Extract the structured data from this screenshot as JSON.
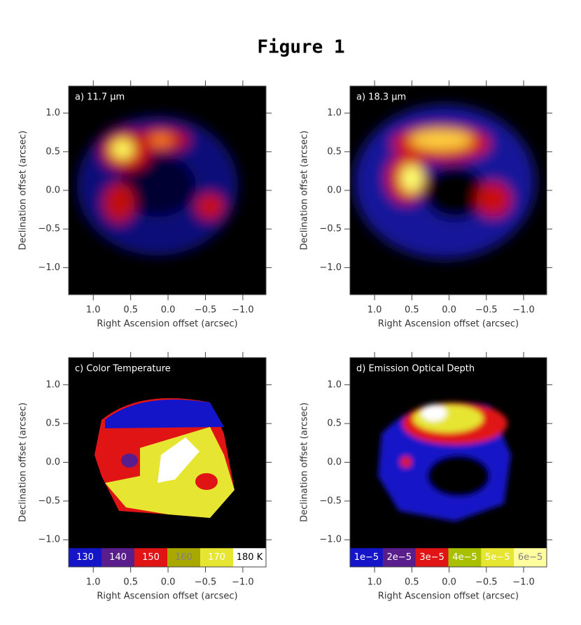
{
  "title": "Figure 1",
  "chart_data": [
    {
      "type": "image",
      "title": "a) 11.7 μm",
      "xlabel": "Right Ascension offset (arcsec)",
      "ylabel": "Declination offset (arcsec)",
      "xlim": [
        1.33,
        -1.31
      ],
      "ylim": [
        -1.35,
        1.35
      ],
      "xticks": [
        {
          "value": 1,
          "label": "1.0"
        },
        0.5,
        {
          "value": 0,
          "label": "0.0"
        },
        {
          "value": -0.5,
          "label": "−0.5"
        },
        {
          "value": -1,
          "label": "−1.0"
        }
      ],
      "yticks": [
        {
          "value": 1,
          "label": "1.0"
        },
        0.5,
        {
          "value": 0,
          "label": "0.0"
        },
        {
          "value": -0.5,
          "label": "−0.5"
        },
        {
          "value": -1,
          "label": "−1.0"
        }
      ]
    },
    {
      "type": "image",
      "title": "a) 18.3 μm",
      "xlabel": "Right Ascension offset (arcsec)",
      "ylabel": "Declination offset (arcsec)",
      "xlim": [
        1.33,
        -1.31
      ],
      "ylim": [
        -1.35,
        1.35
      ],
      "xticks": [
        {
          "value": 1,
          "label": "1.0"
        },
        0.5,
        {
          "value": 0,
          "label": "0.0"
        },
        {
          "value": -0.5,
          "label": "−0.5"
        },
        {
          "value": -1,
          "label": "−1.0"
        }
      ],
      "yticks": [
        {
          "value": 1,
          "label": "1.0"
        },
        0.5,
        {
          "value": 0,
          "label": "0.0"
        },
        {
          "value": -0.5,
          "label": "−0.5"
        },
        {
          "value": -1,
          "label": "−1.0"
        }
      ]
    },
    {
      "type": "image",
      "title": "c) Color Temperature",
      "xlabel": "Right Ascension offset (arcsec)",
      "ylabel": "Declination offset (arcsec)",
      "xlim": [
        1.33,
        -1.31
      ],
      "ylim": [
        -1.35,
        1.35
      ],
      "xticks": [
        {
          "value": 1,
          "label": "1.0"
        },
        0.5,
        {
          "value": 0,
          "label": "0.0"
        },
        {
          "value": -0.5,
          "label": "−0.5"
        },
        {
          "value": -1,
          "label": "−1.0"
        }
      ],
      "yticks": [
        {
          "value": 1,
          "label": "1.0"
        },
        0.5,
        {
          "value": 0,
          "label": "0.0"
        },
        {
          "value": -0.5,
          "label": "−0.5"
        },
        {
          "value": -1,
          "label": "−1.0"
        }
      ],
      "colorbar": {
        "colors": [
          "#1414c8",
          "#5a1e8c",
          "#e01414",
          "#a8a800",
          "#e6e632",
          "#ffffff"
        ],
        "text_colors": [
          "#ffffff",
          "#ffffff",
          "#ffffff",
          "#808080",
          "#ffffff",
          "#000000"
        ],
        "ticks": [
          130,
          140,
          150,
          160,
          170,
          {
            "value": 180,
            "label": "180 K"
          }
        ]
      }
    },
    {
      "type": "image",
      "title": "d) Emission Optical Depth",
      "xlabel": "Right Ascension offset (arcsec)",
      "ylabel": "Declination offset (arcsec)",
      "xlim": [
        1.33,
        -1.31
      ],
      "ylim": [
        -1.35,
        1.35
      ],
      "xticks": [
        {
          "value": 1,
          "label": "1.0"
        },
        0.5,
        {
          "value": 0,
          "label": "0.0"
        },
        {
          "value": -0.5,
          "label": "−0.5"
        },
        {
          "value": -1,
          "label": "−1.0"
        }
      ],
      "yticks": [
        {
          "value": 1,
          "label": "1.0"
        },
        0.5,
        {
          "value": 0,
          "label": "0.0"
        },
        {
          "value": -0.5,
          "label": "−0.5"
        },
        {
          "value": -1,
          "label": "−1.0"
        }
      ],
      "colorbar": {
        "colors": [
          "#1414c8",
          "#5a1e8c",
          "#e01414",
          "#a8c000",
          "#e6e632",
          "#ffffa0"
        ],
        "text_colors": [
          "#ffffff",
          "#ffffff",
          "#ffffff",
          "#ffffff",
          "#ffffff",
          "#808080"
        ],
        "ticks": [
          {
            "value": 1e-05,
            "label": "1e−5"
          },
          {
            "value": 2e-05,
            "label": "2e−5"
          },
          {
            "value": 3e-05,
            "label": "3e−5"
          },
          {
            "value": 4e-05,
            "label": "4e−5"
          },
          {
            "value": 5e-05,
            "label": "5e−5"
          },
          {
            "value": 6e-05,
            "label": "6e−5"
          }
        ]
      }
    }
  ]
}
